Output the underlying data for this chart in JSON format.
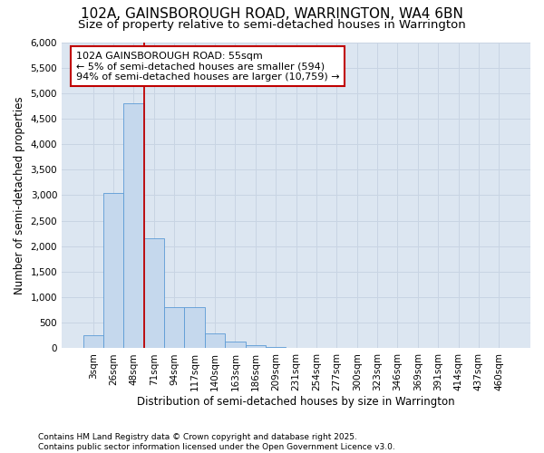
{
  "title1": "102A, GAINSBOROUGH ROAD, WARRINGTON, WA4 6BN",
  "title2": "Size of property relative to semi-detached houses in Warrington",
  "xlabel": "Distribution of semi-detached houses by size in Warrington",
  "ylabel": "Number of semi-detached properties",
  "categories": [
    "3sqm",
    "26sqm",
    "48sqm",
    "71sqm",
    "94sqm",
    "117sqm",
    "140sqm",
    "163sqm",
    "186sqm",
    "209sqm",
    "231sqm",
    "254sqm",
    "277sqm",
    "300sqm",
    "323sqm",
    "346sqm",
    "369sqm",
    "391sqm",
    "414sqm",
    "437sqm",
    "460sqm"
  ],
  "bar_values": [
    250,
    3050,
    4800,
    2150,
    800,
    800,
    300,
    130,
    70,
    30,
    10,
    5,
    2,
    0,
    0,
    0,
    0,
    0,
    0,
    0,
    0
  ],
  "bar_color": "#c5d8ed",
  "bar_edge_color": "#5b9bd5",
  "grid_color": "#c8d4e3",
  "plot_bg_color": "#dce6f1",
  "fig_bg_color": "#ffffff",
  "vline_color": "#c00000",
  "vline_x_idx": 2.5,
  "annotation_title": "102A GAINSBOROUGH ROAD: 55sqm",
  "annotation_line1": "← 5% of semi-detached houses are smaller (594)",
  "annotation_line2": "94% of semi-detached houses are larger (10,759) →",
  "annotation_box_facecolor": "#ffffff",
  "annotation_edge_color": "#c00000",
  "ylim": [
    0,
    6000
  ],
  "ytick_step": 500,
  "footnote": "Contains HM Land Registry data © Crown copyright and database right 2025.\nContains public sector information licensed under the Open Government Licence v3.0.",
  "title1_fontsize": 11,
  "title2_fontsize": 9.5,
  "axis_label_fontsize": 8.5,
  "tick_fontsize": 7.5,
  "annot_fontsize": 8,
  "footnote_fontsize": 6.5
}
